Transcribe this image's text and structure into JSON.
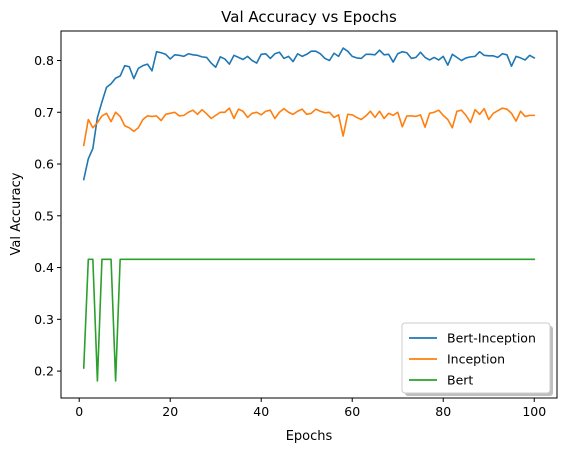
{
  "chart_data": {
    "type": "line",
    "title": "Val Accuracy vs Epochs",
    "xlabel": "Epochs",
    "ylabel": "Val Accuracy",
    "xlim": [
      -4,
      105
    ],
    "ylim": [
      0.148,
      0.857
    ],
    "xticks": [
      0,
      20,
      40,
      60,
      80,
      100
    ],
    "yticks": [
      0.2,
      0.3,
      0.4,
      0.5,
      0.6,
      0.7,
      0.8
    ],
    "grid": false,
    "legend_position": "lower-right",
    "x": [
      1,
      2,
      3,
      4,
      5,
      6,
      7,
      8,
      9,
      10,
      11,
      12,
      13,
      14,
      15,
      16,
      17,
      18,
      19,
      20,
      21,
      22,
      23,
      24,
      25,
      26,
      27,
      28,
      29,
      30,
      31,
      32,
      33,
      34,
      35,
      36,
      37,
      38,
      39,
      40,
      41,
      42,
      43,
      44,
      45,
      46,
      47,
      48,
      49,
      50,
      51,
      52,
      53,
      54,
      55,
      56,
      57,
      58,
      59,
      60,
      61,
      62,
      63,
      64,
      65,
      66,
      67,
      68,
      69,
      70,
      71,
      72,
      73,
      74,
      75,
      76,
      77,
      78,
      79,
      80,
      81,
      82,
      83,
      84,
      85,
      86,
      87,
      88,
      89,
      90,
      91,
      92,
      93,
      94,
      95,
      96,
      97,
      98,
      99,
      100
    ],
    "series": [
      {
        "name": "Bert-Inception",
        "color": "#1f77b4",
        "values": [
          0.57,
          0.61,
          0.63,
          0.69,
          0.72,
          0.748,
          0.755,
          0.766,
          0.77,
          0.79,
          0.788,
          0.765,
          0.785,
          0.79,
          0.793,
          0.78,
          0.817,
          0.815,
          0.812,
          0.803,
          0.811,
          0.81,
          0.808,
          0.813,
          0.811,
          0.81,
          0.807,
          0.806,
          0.795,
          0.787,
          0.807,
          0.803,
          0.793,
          0.81,
          0.806,
          0.802,
          0.808,
          0.8,
          0.795,
          0.812,
          0.813,
          0.804,
          0.813,
          0.816,
          0.804,
          0.808,
          0.798,
          0.813,
          0.808,
          0.812,
          0.818,
          0.818,
          0.813,
          0.804,
          0.8,
          0.814,
          0.808,
          0.824,
          0.818,
          0.808,
          0.805,
          0.804,
          0.812,
          0.812,
          0.811,
          0.82,
          0.811,
          0.812,
          0.797,
          0.813,
          0.817,
          0.815,
          0.804,
          0.806,
          0.816,
          0.806,
          0.801,
          0.806,
          0.801,
          0.808,
          0.791,
          0.812,
          0.806,
          0.8,
          0.805,
          0.807,
          0.808,
          0.817,
          0.81,
          0.809,
          0.809,
          0.806,
          0.813,
          0.811,
          0.789,
          0.808,
          0.805,
          0.801,
          0.81,
          0.805
        ]
      },
      {
        "name": "Inception",
        "color": "#ff7f0e",
        "values": [
          0.636,
          0.686,
          0.67,
          0.68,
          0.693,
          0.698,
          0.682,
          0.7,
          0.692,
          0.674,
          0.67,
          0.663,
          0.67,
          0.686,
          0.693,
          0.692,
          0.693,
          0.684,
          0.696,
          0.698,
          0.7,
          0.693,
          0.694,
          0.7,
          0.704,
          0.696,
          0.705,
          0.697,
          0.688,
          0.694,
          0.7,
          0.7,
          0.708,
          0.688,
          0.706,
          0.702,
          0.69,
          0.698,
          0.7,
          0.695,
          0.702,
          0.704,
          0.688,
          0.7,
          0.707,
          0.7,
          0.696,
          0.702,
          0.706,
          0.696,
          0.698,
          0.706,
          0.702,
          0.699,
          0.7,
          0.69,
          0.695,
          0.654,
          0.696,
          0.695,
          0.69,
          0.686,
          0.693,
          0.702,
          0.69,
          0.702,
          0.688,
          0.698,
          0.694,
          0.7,
          0.672,
          0.693,
          0.693,
          0.692,
          0.695,
          0.671,
          0.698,
          0.7,
          0.704,
          0.694,
          0.686,
          0.67,
          0.702,
          0.704,
          0.694,
          0.68,
          0.705,
          0.696,
          0.707,
          0.686,
          0.698,
          0.703,
          0.708,
          0.706,
          0.698,
          0.683,
          0.702,
          0.692,
          0.694,
          0.694
        ]
      },
      {
        "name": "Bert",
        "color": "#2ca02c",
        "values": [
          0.206,
          0.416,
          0.416,
          0.181,
          0.416,
          0.416,
          0.416,
          0.181,
          0.416,
          0.416,
          0.416,
          0.416,
          0.416,
          0.416,
          0.416,
          0.416,
          0.416,
          0.416,
          0.416,
          0.416,
          0.416,
          0.416,
          0.416,
          0.416,
          0.416,
          0.416,
          0.416,
          0.416,
          0.416,
          0.416,
          0.416,
          0.416,
          0.416,
          0.416,
          0.416,
          0.416,
          0.416,
          0.416,
          0.416,
          0.416,
          0.416,
          0.416,
          0.416,
          0.416,
          0.416,
          0.416,
          0.416,
          0.416,
          0.416,
          0.416,
          0.416,
          0.416,
          0.416,
          0.416,
          0.416,
          0.416,
          0.416,
          0.416,
          0.416,
          0.416,
          0.416,
          0.416,
          0.416,
          0.416,
          0.416,
          0.416,
          0.416,
          0.416,
          0.416,
          0.416,
          0.416,
          0.416,
          0.416,
          0.416,
          0.416,
          0.416,
          0.416,
          0.416,
          0.416,
          0.416,
          0.416,
          0.416,
          0.416,
          0.416,
          0.416,
          0.416,
          0.416,
          0.416,
          0.416,
          0.416,
          0.416,
          0.416,
          0.416,
          0.416,
          0.416,
          0.416,
          0.416,
          0.416,
          0.416,
          0.416
        ]
      }
    ]
  }
}
